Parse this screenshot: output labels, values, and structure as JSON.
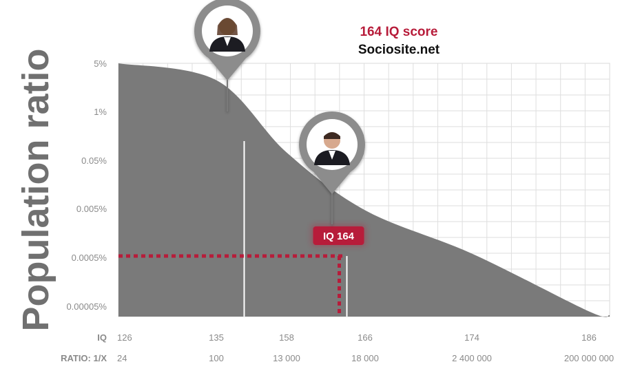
{
  "chart_data": {
    "type": "area",
    "title": "164 IQ score",
    "subtitle": "Sociosite.net",
    "ylabel": "Population ratio",
    "y_ticks": [
      "5%",
      "1%",
      "0.05%",
      "0.005%",
      "0.0005%",
      "0.00005%"
    ],
    "x_rows": [
      {
        "label": "IQ",
        "values": [
          "126",
          "135",
          "158",
          "166",
          "174",
          "186"
        ]
      },
      {
        "label": "RATIO: 1/X",
        "values": [
          "24",
          "100",
          "13 000",
          "18 000",
          "2 400 000",
          "200 000 000"
        ]
      }
    ],
    "x": [
      0,
      1,
      2,
      3,
      4,
      5
    ],
    "curve_y": [
      0,
      0.35,
      1.85,
      3.05,
      3.95,
      5.15
    ],
    "marker_x": 2.75,
    "marker_y": 4.0,
    "callout": "IQ 164",
    "grid": true,
    "area_color": "#7a7a7a",
    "highlight_color": "#b71c3a",
    "pins": [
      {
        "name": "female-portrait-pin",
        "x": 1.23,
        "y": 1.0
      },
      {
        "name": "male-portrait-pin",
        "x": 2.42,
        "y": 3.3
      }
    ]
  }
}
